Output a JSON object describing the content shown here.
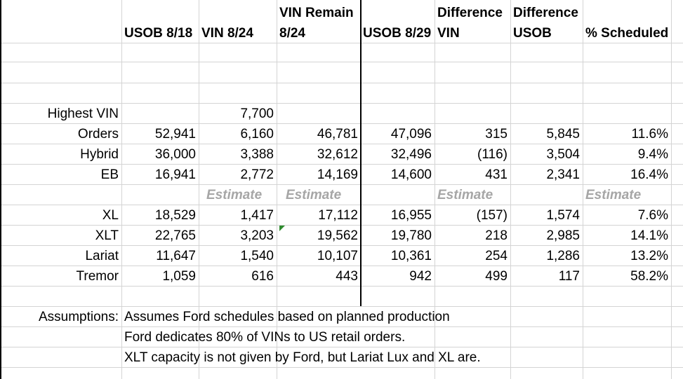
{
  "headers": {
    "usob818": "USOB 8/18",
    "vin824": "VIN 8/24",
    "vin_remain_1": "VIN Remain",
    "vin_remain_2": "8/24",
    "usob829": "USOB 8/29",
    "diff_vin_1": "Difference",
    "diff_vin_2": "VIN",
    "diff_usob_1": "Difference",
    "diff_usob_2": "USOB",
    "pct": "% Scheduled"
  },
  "highest_vin": {
    "label": "Highest VIN",
    "value": "7,700"
  },
  "rows_top": [
    {
      "label": "Orders",
      "usob818": "52,941",
      "vin824": "6,160",
      "remain": "46,781",
      "usob829": "47,096",
      "diff_vin": "315",
      "diff_usob": "5,845",
      "pct": "11.6%"
    },
    {
      "label": "Hybrid",
      "usob818": "36,000",
      "vin824": "3,388",
      "remain": "32,612",
      "usob829": "32,496",
      "diff_vin": "(116)",
      "diff_usob": "3,504",
      "pct": "9.4%"
    },
    {
      "label": "EB",
      "usob818": "16,941",
      "vin824": "2,772",
      "remain": "14,169",
      "usob829": "14,600",
      "diff_vin": "431",
      "diff_usob": "2,341",
      "pct": "16.4%"
    }
  ],
  "estimate_label": "Estimate",
  "rows_bottom": [
    {
      "label": "XL",
      "usob818": "18,529",
      "vin824": "1,417",
      "remain": "17,112",
      "usob829": "16,955",
      "diff_vin": "(157)",
      "diff_usob": "1,574",
      "pct": "7.6%"
    },
    {
      "label": "XLT",
      "usob818": "22,765",
      "vin824": "3,203",
      "remain": "19,562",
      "usob829": "19,780",
      "diff_vin": "218",
      "diff_usob": "2,985",
      "pct": "14.1%"
    },
    {
      "label": "Lariat",
      "usob818": "11,647",
      "vin824": "1,540",
      "remain": "10,107",
      "usob829": "10,361",
      "diff_vin": "254",
      "diff_usob": "1,286",
      "pct": "13.2%"
    },
    {
      "label": "Tremor",
      "usob818": "1,059",
      "vin824": "616",
      "remain": "443",
      "usob829": "942",
      "diff_vin": "499",
      "diff_usob": "117",
      "pct": "58.2%"
    }
  ],
  "assumptions": {
    "label": "Assumptions:",
    "lines": [
      "Assumes Ford schedules based on planned production",
      "Ford dedicates 80% of VINs to US retail orders.",
      "XLT capacity is not given by Ford, but Lariat Lux and XL are."
    ]
  }
}
